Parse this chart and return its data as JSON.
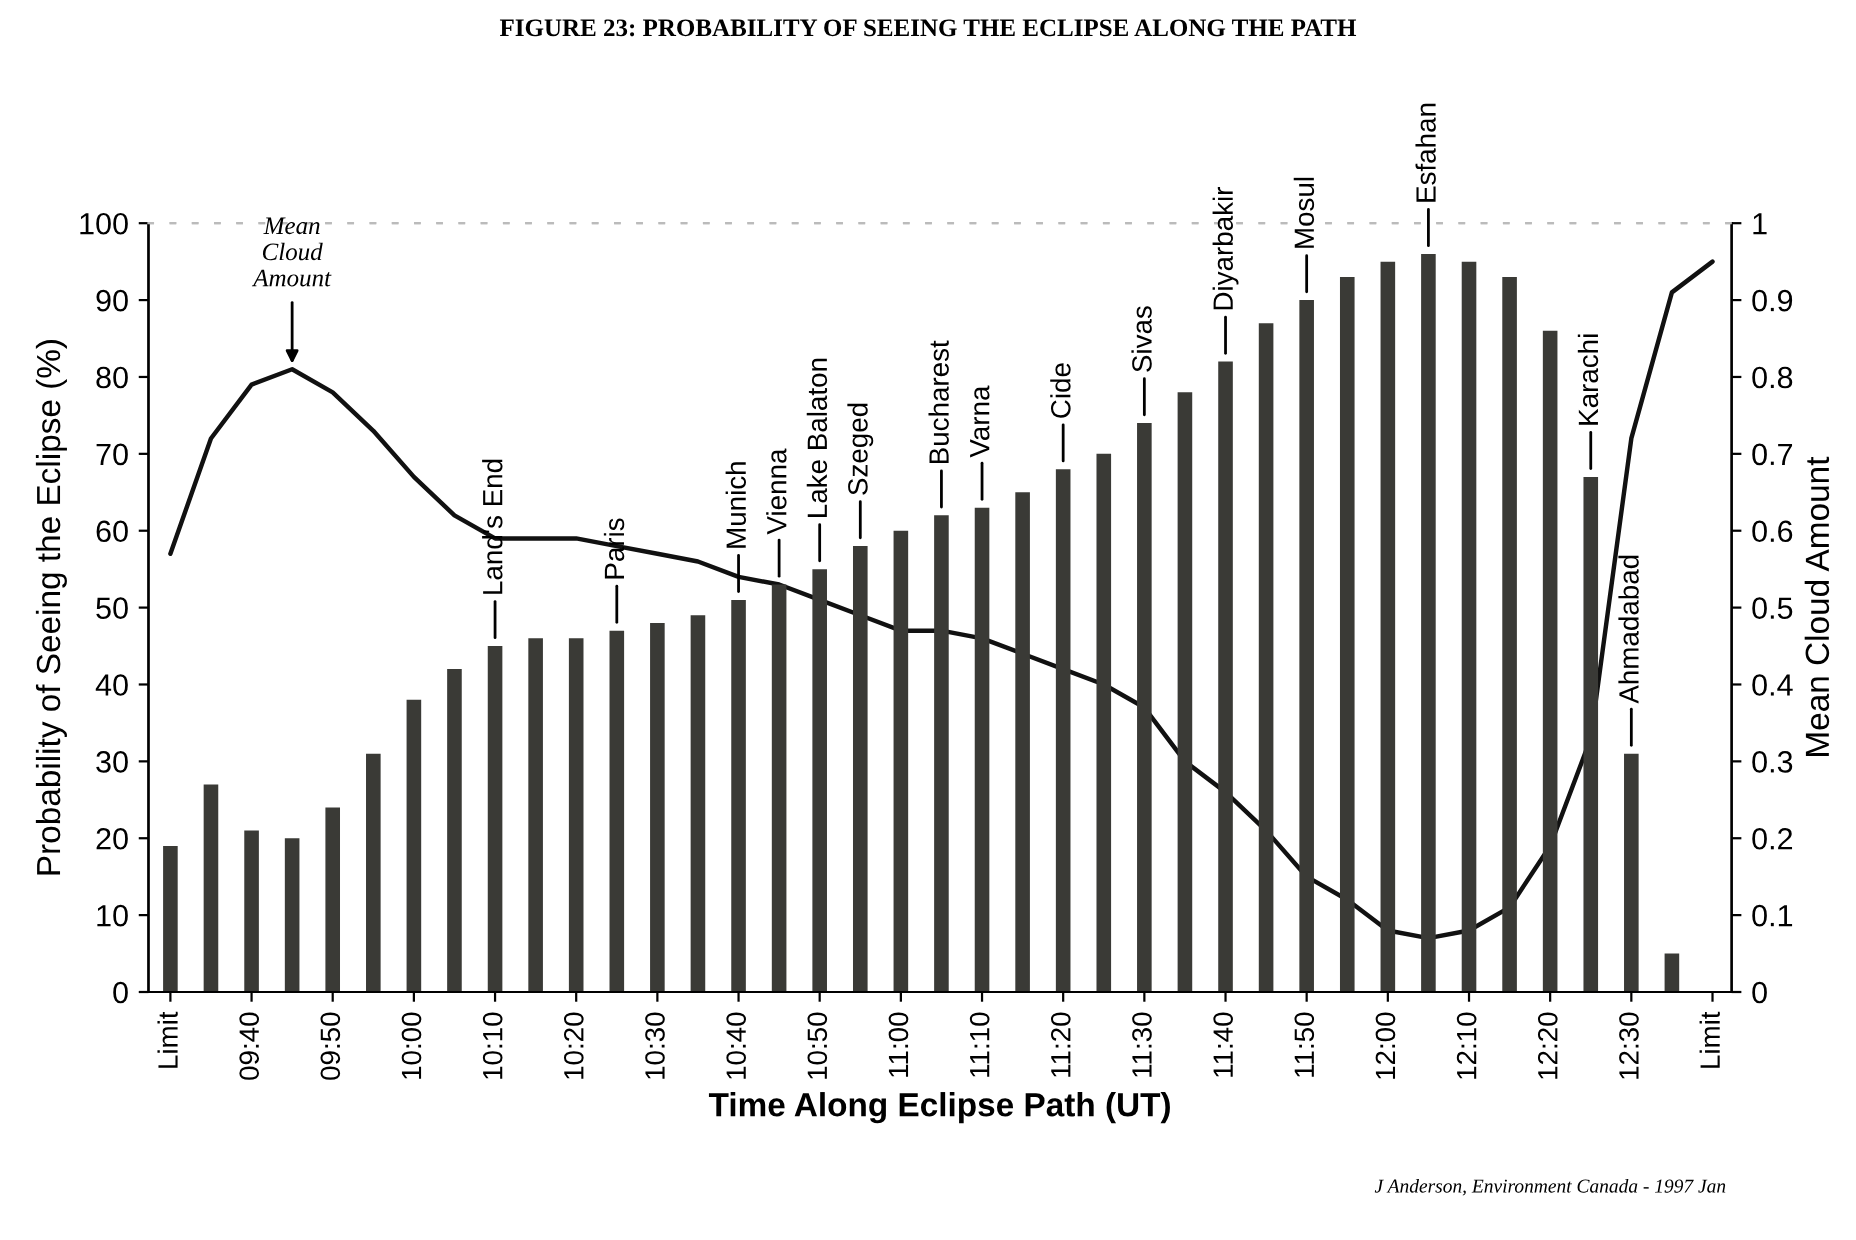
{
  "chart_data": {
    "type": "bar",
    "title": "FIGURE 23: PROBABILITY OF SEEING THE ECLIPSE ALONG THE PATH",
    "xlabel": "Time Along Eclipse Path (UT)",
    "ylabel": "Probability of Seeing the Eclipse (%)",
    "y2label": "Mean Cloud Amount",
    "series": [
      {
        "color": "#3a3a36",
        "x": [
          9.5,
          9.5833,
          9.6667,
          9.75,
          9.8333,
          9.9167,
          10,
          10.0833,
          10.1667,
          10.25,
          10.3333,
          10.4167,
          10.5,
          10.5833,
          10.6667,
          10.75,
          10.8333,
          10.9167,
          11,
          11.0833,
          11.1667,
          11.25,
          11.3333,
          11.4167,
          11.5,
          11.5833,
          11.6667,
          11.75,
          11.8333,
          11.9167,
          12,
          12.0833,
          12.1667,
          12.25,
          12.3333,
          12.4167,
          12.5,
          12.5833
        ],
        "values": [
          19,
          27,
          21,
          20,
          24,
          31,
          38,
          42,
          45,
          46,
          46,
          47,
          48,
          49,
          51,
          53,
          55,
          58,
          60,
          62,
          63,
          65,
          68,
          70,
          74,
          78,
          82,
          87,
          90,
          93,
          95,
          96,
          95,
          93,
          86,
          67,
          31,
          5
        ]
      },
      {
        "type": "line",
        "axis": "y2",
        "color": "#111111",
        "x": [
          9.5,
          9.5833,
          9.6667,
          9.75,
          9.8333,
          9.9167,
          10,
          10.0833,
          10.1667,
          10.25,
          10.3333,
          10.4167,
          10.5,
          10.5833,
          10.6667,
          10.75,
          10.8333,
          10.9167,
          11,
          11.0833,
          11.1667,
          11.25,
          11.3333,
          11.4167,
          11.5,
          11.5833,
          11.6667,
          11.75,
          11.8333,
          11.9167,
          12,
          12.0833,
          12.1667,
          12.25,
          12.3333,
          12.4167,
          12.5,
          12.5833,
          12.6667
        ],
        "values": [
          0.57,
          0.72,
          0.79,
          0.81,
          0.78,
          0.73,
          0.67,
          0.62,
          0.59,
          0.59,
          0.59,
          0.58,
          0.57,
          0.56,
          0.54,
          0.53,
          0.51,
          0.49,
          0.47,
          0.47,
          0.46,
          0.44,
          0.42,
          0.4,
          0.37,
          0.3,
          0.26,
          0.21,
          0.15,
          0.12,
          0.08,
          0.07,
          0.08,
          0.11,
          0.19,
          0.33,
          0.72,
          0.91,
          0.95
        ]
      }
    ],
    "xlim": [
      9.455,
      12.706
    ],
    "xticks": [
      {
        "value": 9.5,
        "label": "Limit"
      },
      {
        "value": 9.6667,
        "label": "09:40"
      },
      {
        "value": 9.8333,
        "label": "09:50"
      },
      {
        "value": 10,
        "label": "10:00"
      },
      {
        "value": 10.1667,
        "label": "10:10"
      },
      {
        "value": 10.3333,
        "label": "10:20"
      },
      {
        "value": 10.5,
        "label": "10:30"
      },
      {
        "value": 10.6667,
        "label": "10:40"
      },
      {
        "value": 10.8333,
        "label": "10:50"
      },
      {
        "value": 11,
        "label": "11:00"
      },
      {
        "value": 11.1667,
        "label": "11:10"
      },
      {
        "value": 11.3333,
        "label": "11:20"
      },
      {
        "value": 11.5,
        "label": "11:30"
      },
      {
        "value": 11.6667,
        "label": "11:40"
      },
      {
        "value": 11.8333,
        "label": "11:50"
      },
      {
        "value": 12,
        "label": "12:00"
      },
      {
        "value": 12.1667,
        "label": "12:10"
      },
      {
        "value": 12.3333,
        "label": "12:20"
      },
      {
        "value": 12.5,
        "label": "12:30"
      },
      {
        "value": 12.6667,
        "label": "Limit"
      }
    ],
    "ylim": [
      0,
      100
    ],
    "yticks": [
      0,
      10,
      20,
      30,
      40,
      50,
      60,
      70,
      80,
      90,
      100
    ],
    "y2lim": [
      0,
      1
    ],
    "y2ticks": [
      0,
      0.1,
      0.2,
      0.3,
      0.4,
      0.5,
      0.6,
      0.7,
      0.8,
      0.9,
      1
    ],
    "annotations": [
      {
        "text": "Mean\nCloud\nAmount",
        "x": 9.75,
        "y": 81
      },
      {
        "text": "Land's End",
        "x": 10.1667,
        "y": 45
      },
      {
        "text": "Paris",
        "x": 10.4167,
        "y": 47
      },
      {
        "text": "Munich",
        "x": 10.6667,
        "y": 51
      },
      {
        "text": "Vienna",
        "x": 10.75,
        "y": 53
      },
      {
        "text": "Lake Balaton",
        "x": 10.8333,
        "y": 55
      },
      {
        "text": "Szeged",
        "x": 10.9167,
        "y": 58
      },
      {
        "text": "Bucharest",
        "x": 11.0833,
        "y": 62
      },
      {
        "text": "Varna",
        "x": 11.1667,
        "y": 63
      },
      {
        "text": "Cide",
        "x": 11.3333,
        "y": 68
      },
      {
        "text": "Sivas",
        "x": 11.5,
        "y": 74
      },
      {
        "text": "Diyarbakir",
        "x": 11.6667,
        "y": 82
      },
      {
        "text": "Mosul",
        "x": 11.8333,
        "y": 90
      },
      {
        "text": "Esfahan",
        "x": 12.0833,
        "y": 96
      },
      {
        "text": "Karachi",
        "x": 12.4167,
        "y": 67
      },
      {
        "text": "Ahmadabad",
        "x": 12.5,
        "y": 31
      },
      "J Anderson, Environment Canada - 1997 Jan"
    ],
    "grid": false,
    "legend": false
  }
}
